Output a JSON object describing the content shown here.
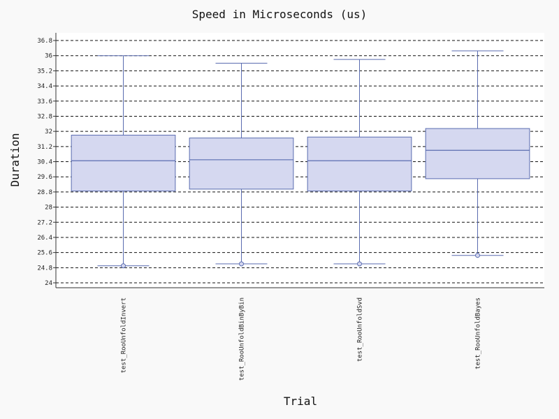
{
  "chart_data": {
    "type": "box",
    "title": "Speed in Microseconds (us)",
    "xlabel": "Trial",
    "ylabel": "Duration",
    "ylim": [
      23.4,
      37.2
    ],
    "yticks": [
      24,
      24.8,
      25.6,
      26.4,
      27.2,
      28,
      28.8,
      29.6,
      30.4,
      31.2,
      32,
      32.8,
      33.6,
      34.4,
      35.2,
      36,
      36.8
    ],
    "ytick_labels": [
      "24",
      "24.8",
      "25.6",
      "26.4",
      "27.2",
      "28",
      "28.8",
      "29.6",
      "30.4",
      "31.2",
      "32",
      "32.8",
      "33.6",
      "34.4",
      "35.2",
      "36",
      "36.8"
    ],
    "grid": "horizontal dashed",
    "categories": [
      "test_RooUnfoldInvert",
      "test_RooUnfoldBinByBin",
      "test_RooUnfoldSvd",
      "test_RooUnfoldBayes"
    ],
    "boxes": [
      {
        "whisker_low": 24.9,
        "q1": 28.85,
        "median": 30.45,
        "q3": 31.8,
        "whisker_high": 36.0,
        "outliers": [
          24.9
        ]
      },
      {
        "whisker_low": 25.0,
        "q1": 28.95,
        "median": 30.5,
        "q3": 31.65,
        "whisker_high": 35.6,
        "outliers": [
          25.0
        ]
      },
      {
        "whisker_low": 25.0,
        "q1": 28.85,
        "median": 30.45,
        "q3": 31.7,
        "whisker_high": 35.8,
        "outliers": [
          25.0
        ]
      },
      {
        "whisker_low": 25.45,
        "q1": 29.5,
        "median": 31.0,
        "q3": 32.15,
        "whisker_high": 36.25,
        "outliers": [
          25.45
        ]
      }
    ],
    "colors": {
      "box_fill": "#d5d8f0",
      "box_stroke": "#5a6cb0",
      "grid": "#111111",
      "background": "#ffffff",
      "page": "#f9f9f9"
    }
  }
}
